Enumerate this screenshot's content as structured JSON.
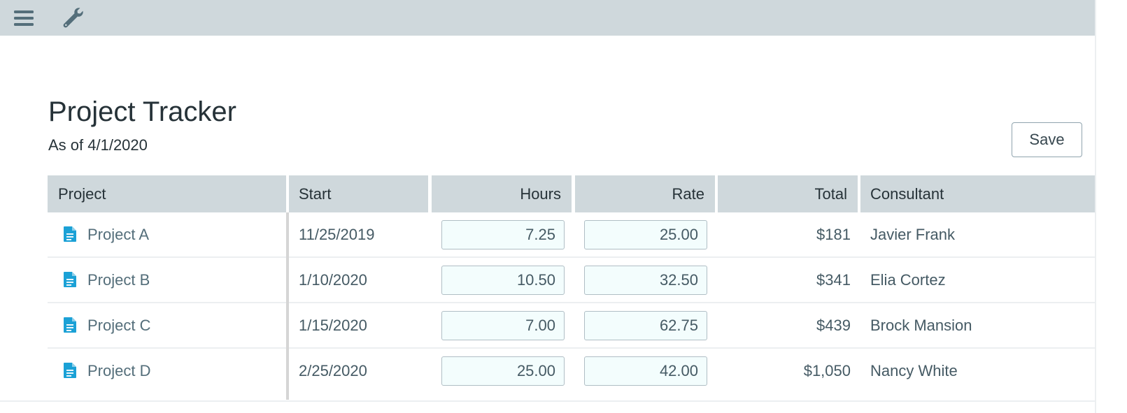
{
  "toolbar": {
    "menu_icon": "hamburger-menu-icon",
    "tool_icon": "wrench-icon"
  },
  "page": {
    "title": "Project Tracker",
    "subtitle": "As of 4/1/2020",
    "save_label": "Save"
  },
  "table": {
    "columns": {
      "project": "Project",
      "start": "Start",
      "hours": "Hours",
      "rate": "Rate",
      "total": "Total",
      "consultant": "Consultant"
    },
    "rows": [
      {
        "project": "Project A",
        "start": "11/25/2019",
        "hours": "7.25",
        "rate": "25.00",
        "total": "$181",
        "consultant": "Javier Frank"
      },
      {
        "project": "Project B",
        "start": "1/10/2020",
        "hours": "10.50",
        "rate": "32.50",
        "total": "$341",
        "consultant": "Elia Cortez"
      },
      {
        "project": "Project C",
        "start": "1/15/2020",
        "hours": "7.00",
        "rate": "62.75",
        "total": "$439",
        "consultant": "Brock Mansion"
      },
      {
        "project": "Project D",
        "start": "2/25/2020",
        "hours": "25.00",
        "rate": "42.00",
        "total": "$1,050",
        "consultant": "Nancy White"
      }
    ]
  },
  "colors": {
    "toolbar_bg": "#cfd8dc",
    "header_bg": "#cfd8dc",
    "icon_accent": "#1ba1d6",
    "input_bg": "#f3fdfd"
  }
}
